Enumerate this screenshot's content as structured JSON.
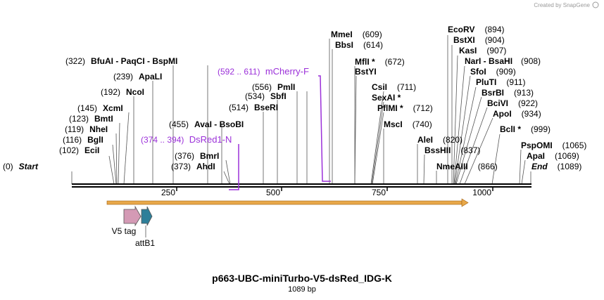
{
  "credit": "Created by SnapGene",
  "title": "p663-UBC-miniTurbo-V5-dsRed_IDG-K",
  "length_label": "1089 bp",
  "ruler_ticks": [
    "250",
    "500",
    "750",
    "1000"
  ],
  "sites": [
    {
      "pos": "(0)",
      "name": "Start",
      "italic": true
    },
    {
      "pos": "(102)",
      "name": "EciI"
    },
    {
      "pos": "(116)",
      "name": "BglI"
    },
    {
      "pos": "(119)",
      "name": "NheI"
    },
    {
      "pos": "(123)",
      "name": "BmtI"
    },
    {
      "pos": "(145)",
      "name": "XcmI"
    },
    {
      "pos": "(192)",
      "name": "NcoI"
    },
    {
      "pos": "(239)",
      "name": "ApaLI"
    },
    {
      "pos": "(322)",
      "name": "BfuAI  - PaqCI  - BspMI"
    },
    {
      "pos": "(455)",
      "name": "AvaI  - BsoBI"
    },
    {
      "pos": "(376)",
      "name": "BmrI"
    },
    {
      "pos": "(373)",
      "name": "AhdI"
    },
    {
      "pos": "(514)",
      "name": "BseRI"
    },
    {
      "pos": "(534)",
      "name": "SbfI"
    },
    {
      "pos": "(556)",
      "name": "PmlI"
    },
    {
      "pos": "(609)",
      "name": "MmeI"
    },
    {
      "pos": "(614)",
      "name": "BbsI"
    },
    {
      "pos": "(672)",
      "name": "MflI *"
    },
    {
      "pos": "",
      "name": "BstYI"
    },
    {
      "pos": "(711)",
      "name": "CsiI"
    },
    {
      "pos": "",
      "name": "SexAI *"
    },
    {
      "pos": "(712)",
      "name": "PflMI *"
    },
    {
      "pos": "(740)",
      "name": "MscI"
    },
    {
      "pos": "(820)",
      "name": "AleI"
    },
    {
      "pos": "(837)",
      "name": "BssHII"
    },
    {
      "pos": "(866)",
      "name": "NmeAIII"
    },
    {
      "pos": "(894)",
      "name": "EcoRV"
    },
    {
      "pos": "(904)",
      "name": "BstXI"
    },
    {
      "pos": "(907)",
      "name": "KasI"
    },
    {
      "pos": "(908)",
      "name": "NarI  - BsaHI"
    },
    {
      "pos": "(909)",
      "name": "SfoI"
    },
    {
      "pos": "(911)",
      "name": "PluTI"
    },
    {
      "pos": "(913)",
      "name": "BsrBI"
    },
    {
      "pos": "(922)",
      "name": "BciVI"
    },
    {
      "pos": "(934)",
      "name": "ApoI"
    },
    {
      "pos": "(999)",
      "name": "BclI *"
    },
    {
      "pos": "(1065)",
      "name": "PspOMI"
    },
    {
      "pos": "(1069)",
      "name": "ApaI"
    },
    {
      "pos": "(1089)",
      "name": "End",
      "italic": true
    }
  ],
  "primers": [
    {
      "range": "(592 .. 611)",
      "name": "mCherry-F"
    },
    {
      "range": "(374 .. 394)",
      "name": "DsRed1-N"
    }
  ],
  "features": [
    {
      "name": "V5 tag",
      "color": "#d49ab5"
    },
    {
      "name": "attB1",
      "color": "#2e7f99"
    }
  ],
  "orf_color": "#e8a84a"
}
